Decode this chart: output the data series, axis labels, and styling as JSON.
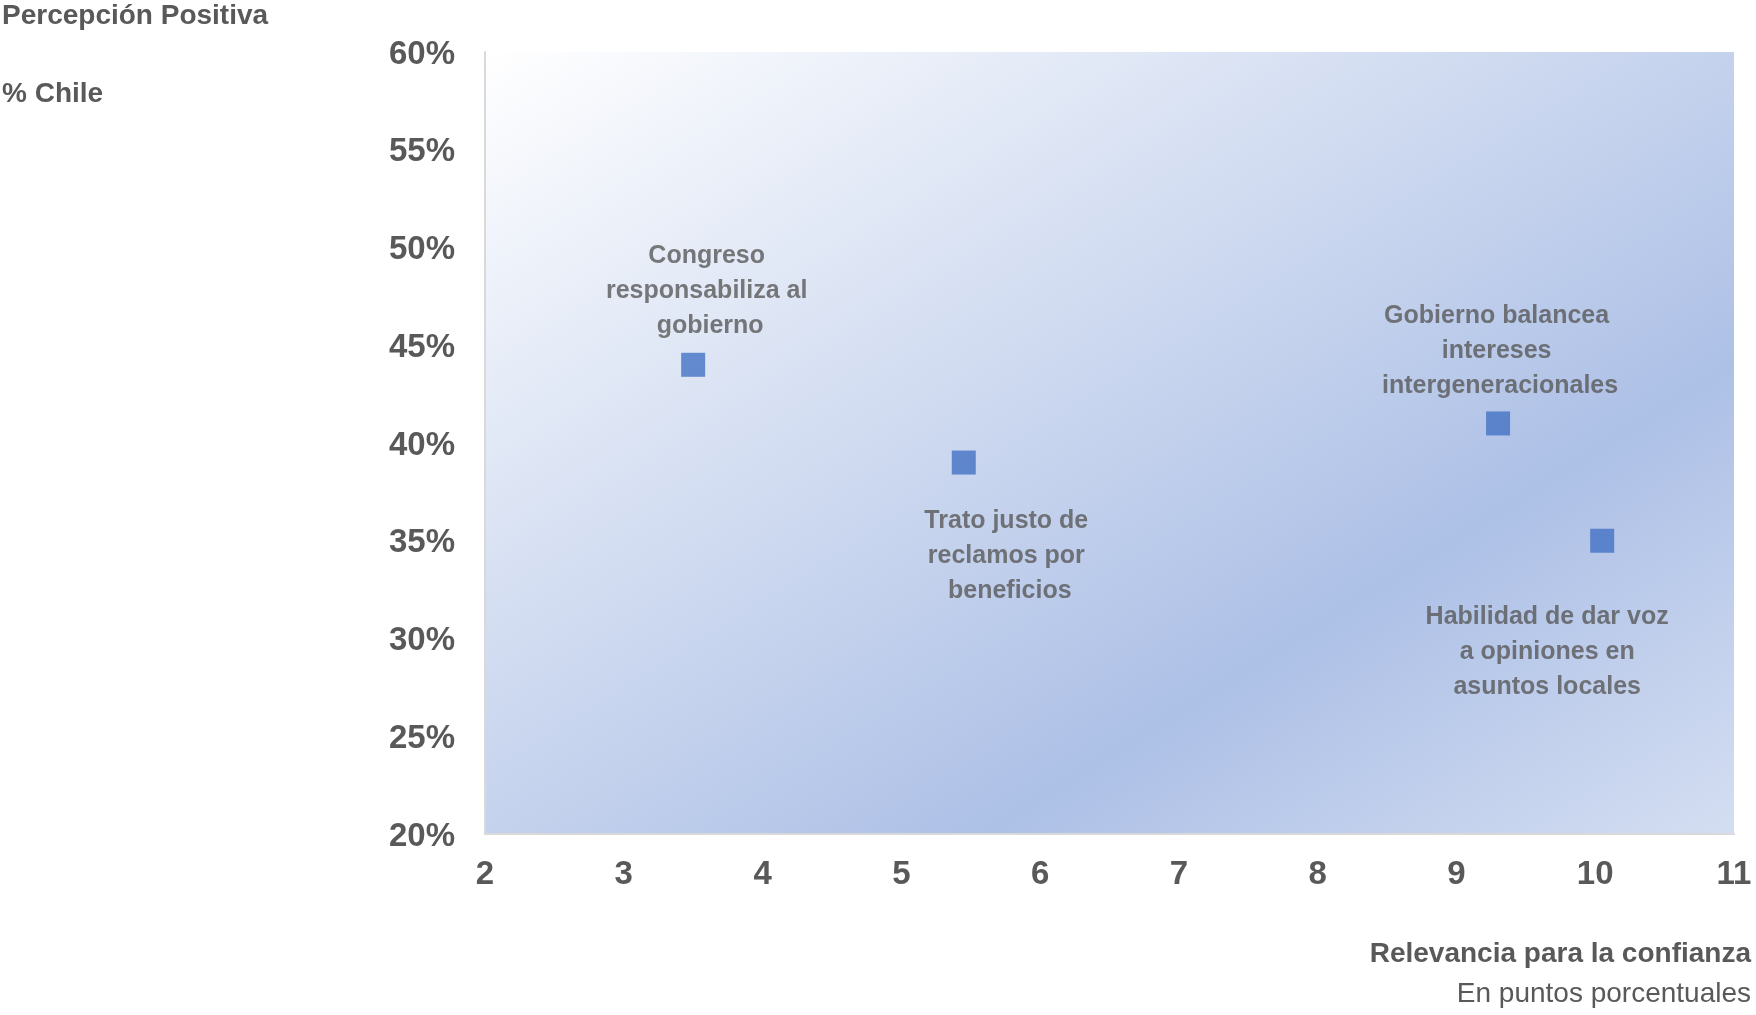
{
  "chart_data": {
    "type": "scatter",
    "ylabel": "Percepción Positiva",
    "xlabel": "Relevancia para la confianza",
    "x": [
      3.5,
      5.45,
      9.3,
      10.05
    ],
    "values": [
      44,
      39,
      41,
      35
    ],
    "color": "#4472c4",
    "marker": "square",
    "grid": false,
    "xlim": [
      2,
      11
    ],
    "xticks": [
      2,
      3,
      4,
      5,
      6,
      7,
      8,
      9,
      10,
      11
    ],
    "ylim": [
      20,
      60
    ],
    "yticks": [
      {
        "value": 20,
        "label": "20%"
      },
      {
        "value": 25,
        "label": "25%"
      },
      {
        "value": 30,
        "label": "30%"
      },
      {
        "value": 35,
        "label": "35%"
      },
      {
        "value": 40,
        "label": "40%"
      },
      {
        "value": 45,
        "label": "45%"
      },
      {
        "value": 50,
        "label": "50%"
      },
      {
        "value": 55,
        "label": "55%"
      },
      {
        "value": 60,
        "label": "60%"
      }
    ],
    "annotations": [
      {
        "text": "Congreso responsabiliza al gobierno",
        "x": 3.5,
        "y": 44
      },
      {
        "text": "Trato justo de reclamos por beneficios",
        "x": 5.45,
        "y": 39
      },
      {
        "text": "Gobierno balancea intereses intergeneracionales",
        "x": 9.3,
        "y": 41
      },
      {
        "text": "Habilidad de dar voz a opiniones en asuntos locales",
        "x": 10.05,
        "y": 35
      },
      "% Chile",
      "En puntos porcentuales"
    ]
  }
}
